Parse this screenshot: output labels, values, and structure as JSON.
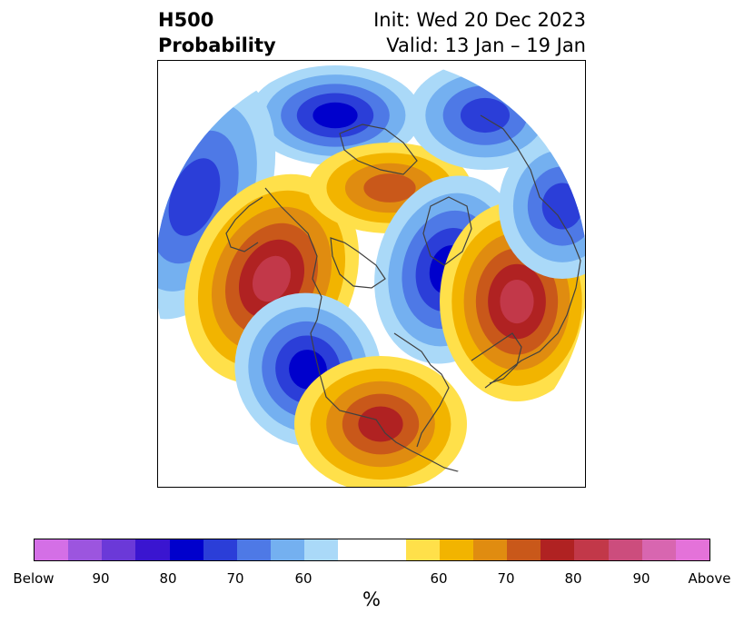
{
  "title": {
    "left_line1": "H500",
    "left_line2": "Probability",
    "init": "Init: Wed 20 Dec 2023",
    "valid": "Valid: 13 Jan – 19 Jan"
  },
  "colorbar": {
    "unit": "%",
    "ticks": [
      "Below",
      "90",
      "80",
      "70",
      "60",
      "60",
      "70",
      "80",
      "90",
      "Above"
    ],
    "colors": {
      "below_bins": [
        "#d46fe6",
        "#9c55df",
        "#6b39d8",
        "#3a15d0",
        "#0000cc",
        "#2b3ed8",
        "#4e79e6",
        "#74b0f0",
        "#aad9f8"
      ],
      "neutral": "#ffffff",
      "above_bins": [
        "#ffe04a",
        "#f2b400",
        "#e08c10",
        "#c9581a",
        "#b02222",
        "#c23849",
        "#cc4d7d",
        "#d866b0",
        "#e472d9"
      ]
    }
  },
  "map": {
    "projection": "north-polar stereographic",
    "anomaly_centers": [
      {
        "region": "Canadian Arctic Archipelago",
        "sign": "below",
        "peak_percent": 80
      },
      {
        "region": "North Pacific (west)",
        "sign": "below",
        "peak_percent": 70
      },
      {
        "region": "Bering Sea / Alaska",
        "sign": "above",
        "peak_percent": 90
      },
      {
        "region": "Greenland / northern Canada",
        "sign": "above",
        "peak_percent": 70
      },
      {
        "region": "Western North America",
        "sign": "below",
        "peak_percent": 80
      },
      {
        "region": "Eastern United States",
        "sign": "above",
        "peak_percent": 80
      },
      {
        "region": "Siberia / North Pole",
        "sign": "below",
        "peak_percent": 80
      },
      {
        "region": "Scandinavia / Western Russia",
        "sign": "above",
        "peak_percent": 90
      },
      {
        "region": "Central Asia",
        "sign": "below",
        "peak_percent": 70
      },
      {
        "region": "North Atlantic",
        "sign": "below",
        "peak_percent": 70
      }
    ]
  }
}
